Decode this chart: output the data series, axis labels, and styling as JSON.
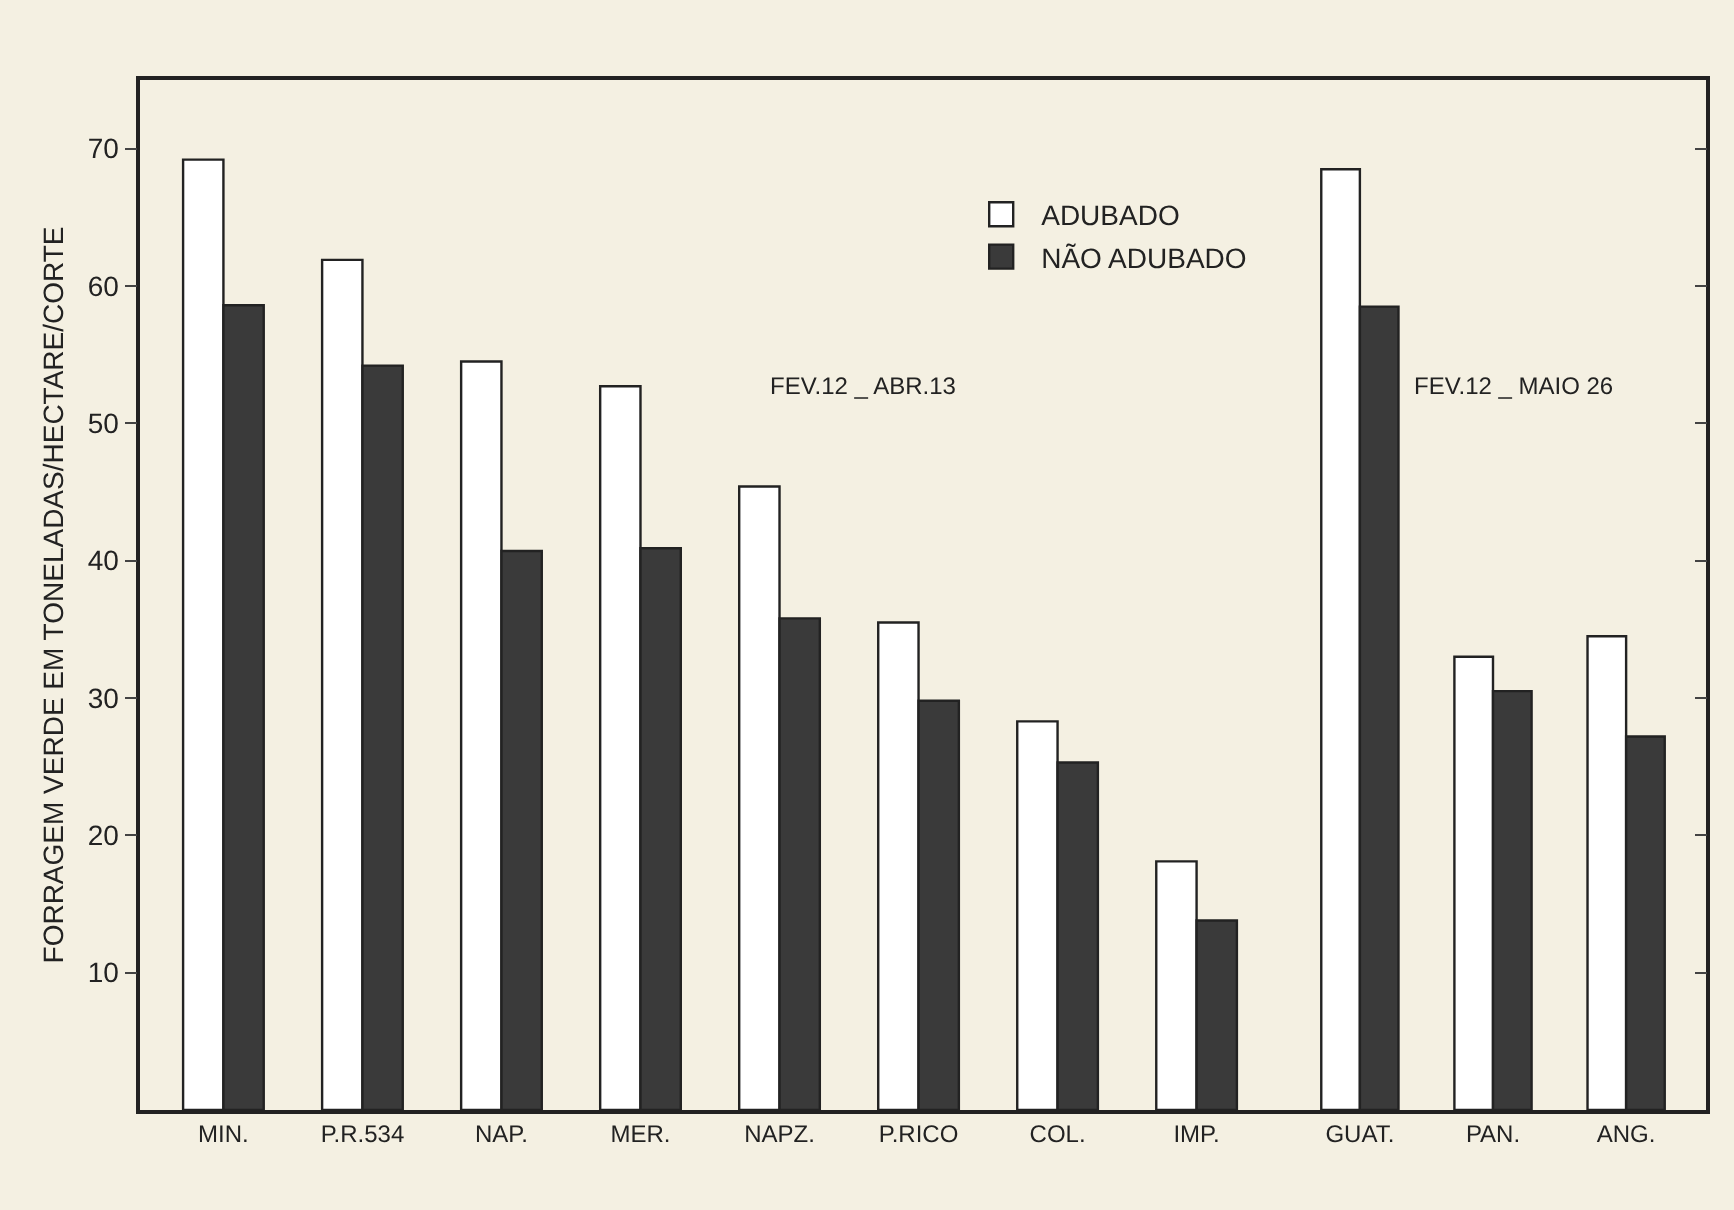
{
  "chart_data": [
    {
      "type": "bar",
      "ylabel": "FORRAGEM VERDE EM TONELADAS/HECTARE/CORTE",
      "categories": [
        "MIN.",
        "P.R.534",
        "NAP.",
        "MER.",
        "NAPZ.",
        "P.RICO",
        "COL.",
        "IMP."
      ],
      "series": [
        {
          "name": "ADUBADO",
          "color": "#ffffff",
          "values": [
            69.2,
            61.9,
            54.5,
            52.7,
            45.4,
            35.5,
            28.3,
            18.1
          ]
        },
        {
          "name": "NÃO ADUBADO",
          "color": "#3a3a3a",
          "values": [
            58.6,
            54.2,
            40.7,
            40.9,
            35.8,
            29.8,
            25.3,
            13.8
          ]
        }
      ],
      "ylim": [
        0,
        75
      ],
      "yticks": [
        10,
        20,
        30,
        40,
        50,
        60,
        70
      ],
      "grid": false,
      "legend": "top right",
      "annotations": [
        "FEV.12 _ ABR.13"
      ]
    },
    {
      "type": "bar",
      "categories": [
        "GUAT.",
        "PAN.",
        "ANG."
      ],
      "series": [
        {
          "color": "#ffffff",
          "values": [
            68.5,
            33.0,
            34.5
          ]
        },
        {
          "color": "#3a3a3a",
          "values": [
            58.5,
            30.5,
            27.2
          ]
        }
      ],
      "ylim": [
        0,
        75
      ],
      "yticks": [
        {
          "value": 10,
          "label": null
        },
        {
          "value": 20,
          "label": null
        },
        {
          "value": 30,
          "label": null
        },
        {
          "value": 40,
          "label": null
        },
        {
          "value": 50,
          "label": null
        },
        {
          "value": 60,
          "label": null
        },
        {
          "value": 70,
          "label": null
        }
      ],
      "tick_labels": "x",
      "grid": false,
      "annotations": [
        "FEV.12 _ MAIO 26"
      ]
    }
  ]
}
